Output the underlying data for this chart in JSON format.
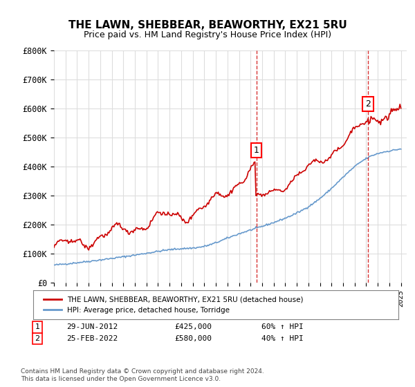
{
  "title": "THE LAWN, SHEBBEAR, BEAWORTHY, EX21 5RU",
  "subtitle": "Price paid vs. HM Land Registry's House Price Index (HPI)",
  "ylim": [
    0,
    800000
  ],
  "yticks": [
    0,
    100000,
    200000,
    300000,
    400000,
    500000,
    600000,
    700000,
    800000
  ],
  "ytick_labels": [
    "£0",
    "£100K",
    "£200K",
    "£300K",
    "£400K",
    "£500K",
    "£600K",
    "£700K",
    "£800K"
  ],
  "house_color": "#cc0000",
  "hpi_color": "#6699cc",
  "vline_color": "#cc0000",
  "vline_style": "dashed",
  "marker1_x": 2012.5,
  "marker2_x": 2022.15,
  "marker1_price": 425000,
  "marker2_price": 580000,
  "legend_house": "THE LAWN, SHEBBEAR, BEAWORTHY, EX21 5RU (detached house)",
  "legend_hpi": "HPI: Average price, detached house, Torridge",
  "annotation1_label": "1",
  "annotation2_label": "2",
  "note1_date": "29-JUN-2012",
  "note1_price": "£425,000",
  "note1_hpi": "60% ↑ HPI",
  "note2_date": "25-FEB-2022",
  "note2_price": "£580,000",
  "note2_hpi": "40% ↑ HPI",
  "footer": "Contains HM Land Registry data © Crown copyright and database right 2024.\nThis data is licensed under the Open Government Licence v3.0.",
  "background_color": "#ffffff",
  "grid_color": "#dddddd"
}
